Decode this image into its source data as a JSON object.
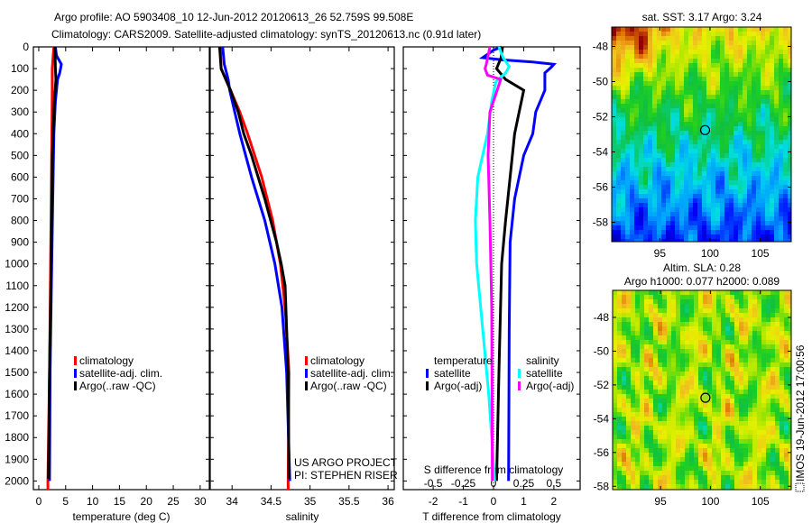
{
  "header": {
    "title_line1": "Argo profile: AO 5903408_10 12-Jun-2012 20120613_26 52.759S 99.508E",
    "title_line2": "Climatology: CARS2009. Satellite-adjusted climatology: synTS_20120613.nc (0.91d later)"
  },
  "colors": {
    "climatology": "#ff0000",
    "satellite": "#0000ff",
    "argo": "#000000",
    "sal_satellite": "#00ffff",
    "sal_argo": "#ff00ff"
  },
  "chart_data": [
    {
      "id": "temperature",
      "type": "line",
      "xlabel": "temperature (deg C)",
      "ylabel": "",
      "xlim": [
        -1,
        31.7
      ],
      "ylim": [
        2040,
        0
      ],
      "xticks": [
        0,
        5,
        10,
        15,
        20,
        25,
        30
      ],
      "yticks": [
        0,
        100,
        200,
        300,
        400,
        500,
        600,
        700,
        800,
        900,
        1000,
        1100,
        1200,
        1300,
        1400,
        1500,
        1600,
        1700,
        1800,
        1900,
        2000
      ],
      "legend": [
        "climatology",
        "satellite-adj. clim.",
        "Argo(..raw -QC)"
      ],
      "series": [
        {
          "name": "climatology",
          "color": "#ff0000",
          "depth": [
            0,
            100,
            200,
            500,
            1000,
            1500,
            2000,
            2040
          ],
          "values": [
            2.8,
            2.5,
            2.5,
            2.4,
            2.2,
            2.0,
            1.7,
            1.7
          ]
        },
        {
          "name": "satellite-adj. clim.",
          "color": "#0000ff",
          "depth": [
            0,
            40,
            80,
            120,
            150,
            250,
            400,
            700,
            1000,
            1500,
            2000
          ],
          "values": [
            3.1,
            3.3,
            4.2,
            3.9,
            3.5,
            3.1,
            2.8,
            2.6,
            2.4,
            2.1,
            2.0
          ]
        },
        {
          "name": "Argo(..raw -QC)",
          "color": "#000000",
          "depth": [
            0,
            100,
            150,
            250,
            500,
            800,
            1000,
            1500,
            1990
          ],
          "values": [
            3.0,
            3.1,
            3.2,
            2.9,
            2.5,
            2.4,
            2.3,
            2.0,
            1.8
          ]
        }
      ]
    },
    {
      "id": "salinity",
      "type": "line",
      "xlabel": "salinity",
      "xlim": [
        33.72,
        36.08
      ],
      "ylim": [
        2040,
        0
      ],
      "xticks": [
        34,
        34.5,
        35,
        35.5,
        36
      ],
      "legend": [
        "climatology",
        "satellite-adj. clim.",
        "Argo(..raw -QC)"
      ],
      "annotations": [
        "US ARGO PROJECT",
        "PI: STEPHEN RISER"
      ],
      "series": [
        {
          "name": "climatology",
          "color": "#ff0000",
          "depth": [
            0,
            100,
            150,
            200,
            300,
            400,
            600,
            800,
            1000,
            1200,
            1500,
            2000,
            2040
          ],
          "values": [
            33.85,
            33.86,
            33.92,
            33.98,
            34.1,
            34.2,
            34.38,
            34.52,
            34.62,
            34.68,
            34.73,
            34.72,
            34.72
          ]
        },
        {
          "name": "satellite-adj. clim.",
          "color": "#0000ff",
          "depth": [
            0,
            80,
            150,
            200,
            400,
            600,
            800,
            1000,
            1200,
            1500,
            2000
          ],
          "values": [
            33.88,
            33.9,
            33.95,
            33.97,
            34.1,
            34.25,
            34.42,
            34.55,
            34.64,
            34.7,
            34.74
          ]
        },
        {
          "name": "Argo(..raw -QC)",
          "color": "#000000",
          "depth": [
            0,
            100,
            150,
            200,
            300,
            400,
            500,
            700,
            900,
            1000,
            1100,
            1300,
            1500,
            1990
          ],
          "values": [
            33.84,
            33.86,
            33.92,
            33.98,
            34.08,
            34.15,
            34.25,
            34.42,
            34.57,
            34.63,
            34.68,
            34.7,
            34.72,
            34.73
          ]
        }
      ]
    },
    {
      "id": "difference",
      "type": "line",
      "xlabel": "T difference from climatology",
      "x2label": "S difference from climatology",
      "xlim": [
        -2.99,
        2.87
      ],
      "x2lim": [
        -0.7475,
        0.7175
      ],
      "ylim": [
        2040,
        0
      ],
      "xticks": [
        -2,
        -1,
        0,
        1,
        2
      ],
      "x2ticks": [
        "-0.5",
        "-0.25",
        "0",
        "0.25",
        "0.5"
      ],
      "x2tick_values": [
        -0.5,
        -0.25,
        0,
        0.25,
        0.5
      ],
      "legend_titles": [
        "temperature",
        "salinity"
      ],
      "legend": [
        "satellite",
        "Argo(-adj)",
        "satellite",
        "Argo(-adj)"
      ],
      "series": [
        {
          "name": "temperature satellite",
          "axis": "T",
          "color": "#0000ff",
          "depth": [
            0,
            15,
            50,
            60,
            70,
            80,
            95,
            120,
            200,
            300,
            400,
            500,
            700,
            900,
            1300,
            2000
          ],
          "values": [
            0.27,
            0.0,
            -0.36,
            0.3,
            1.3,
            2.0,
            1.9,
            1.7,
            1.7,
            1.4,
            1.3,
            1.0,
            0.7,
            0.55,
            0.52,
            0.5
          ]
        },
        {
          "name": "temperature Argo(-adj)",
          "axis": "T",
          "color": "#000000",
          "depth": [
            0,
            50,
            100,
            150,
            200,
            300,
            400,
            600,
            800,
            1000,
            1500,
            2000
          ],
          "values": [
            0.3,
            0.25,
            0.1,
            0.4,
            1.0,
            0.85,
            0.7,
            0.55,
            0.4,
            0.27,
            0.18,
            0.1
          ]
        },
        {
          "name": "salinity satellite",
          "axis": "S",
          "color": "#00ffff",
          "depth": [
            0,
            50,
            90,
            120,
            160,
            250,
            400,
            600,
            800,
            1000,
            1300,
            1600,
            2000
          ],
          "values": [
            0.045,
            0.08,
            0.13,
            0.1,
            0.02,
            -0.015,
            -0.05,
            -0.13,
            -0.15,
            -0.14,
            -0.09,
            -0.04,
            0.01
          ]
        },
        {
          "name": "salinity Argo(-adj)",
          "axis": "S",
          "color": "#ff00ff",
          "depth": [
            0,
            80,
            100,
            130,
            150,
            200,
            300,
            500,
            800,
            1200,
            2000
          ],
          "values": [
            -0.03,
            -0.06,
            -0.07,
            -0.05,
            0.06,
            0.03,
            -0.03,
            -0.045,
            -0.03,
            -0.015,
            -0.01
          ]
        }
      ]
    },
    {
      "id": "sst-map",
      "type": "heatmap",
      "title": "sat. SST: 3.17 Argo: 3.24",
      "xlim": [
        90.2,
        108.1
      ],
      "ylim": [
        -59.1,
        -46.9
      ],
      "xticks": [
        95,
        100,
        105
      ],
      "yticks": [
        -48,
        -50,
        -52,
        -54,
        -56,
        -58
      ],
      "ytick_labels": [
        "-48",
        "-50",
        "-52",
        "-54",
        "-56",
        "-58"
      ],
      "marker": {
        "lon": 99.508,
        "lat": -52.759
      }
    },
    {
      "id": "sla-map",
      "type": "heatmap",
      "title_line1": "Altim. SLA: 0.28",
      "title_line2": "Argo h1000: 0.077 h2000: 0.089",
      "xlim": [
        90.2,
        108.1
      ],
      "ylim": [
        -58.2,
        -46.4
      ],
      "xticks": [
        95,
        100,
        105
      ],
      "yticks": [
        -48,
        -50,
        -52,
        -54,
        -56,
        -58
      ],
      "ytick_labels": [
        "-48",
        "-50",
        "-52",
        "-54",
        "-56",
        "-58"
      ],
      "marker": {
        "lon": 99.5,
        "lat": -52.76
      }
    }
  ],
  "footer": {
    "imos_stamp": "IMOS 19-Jun-2012 17:00:56"
  }
}
